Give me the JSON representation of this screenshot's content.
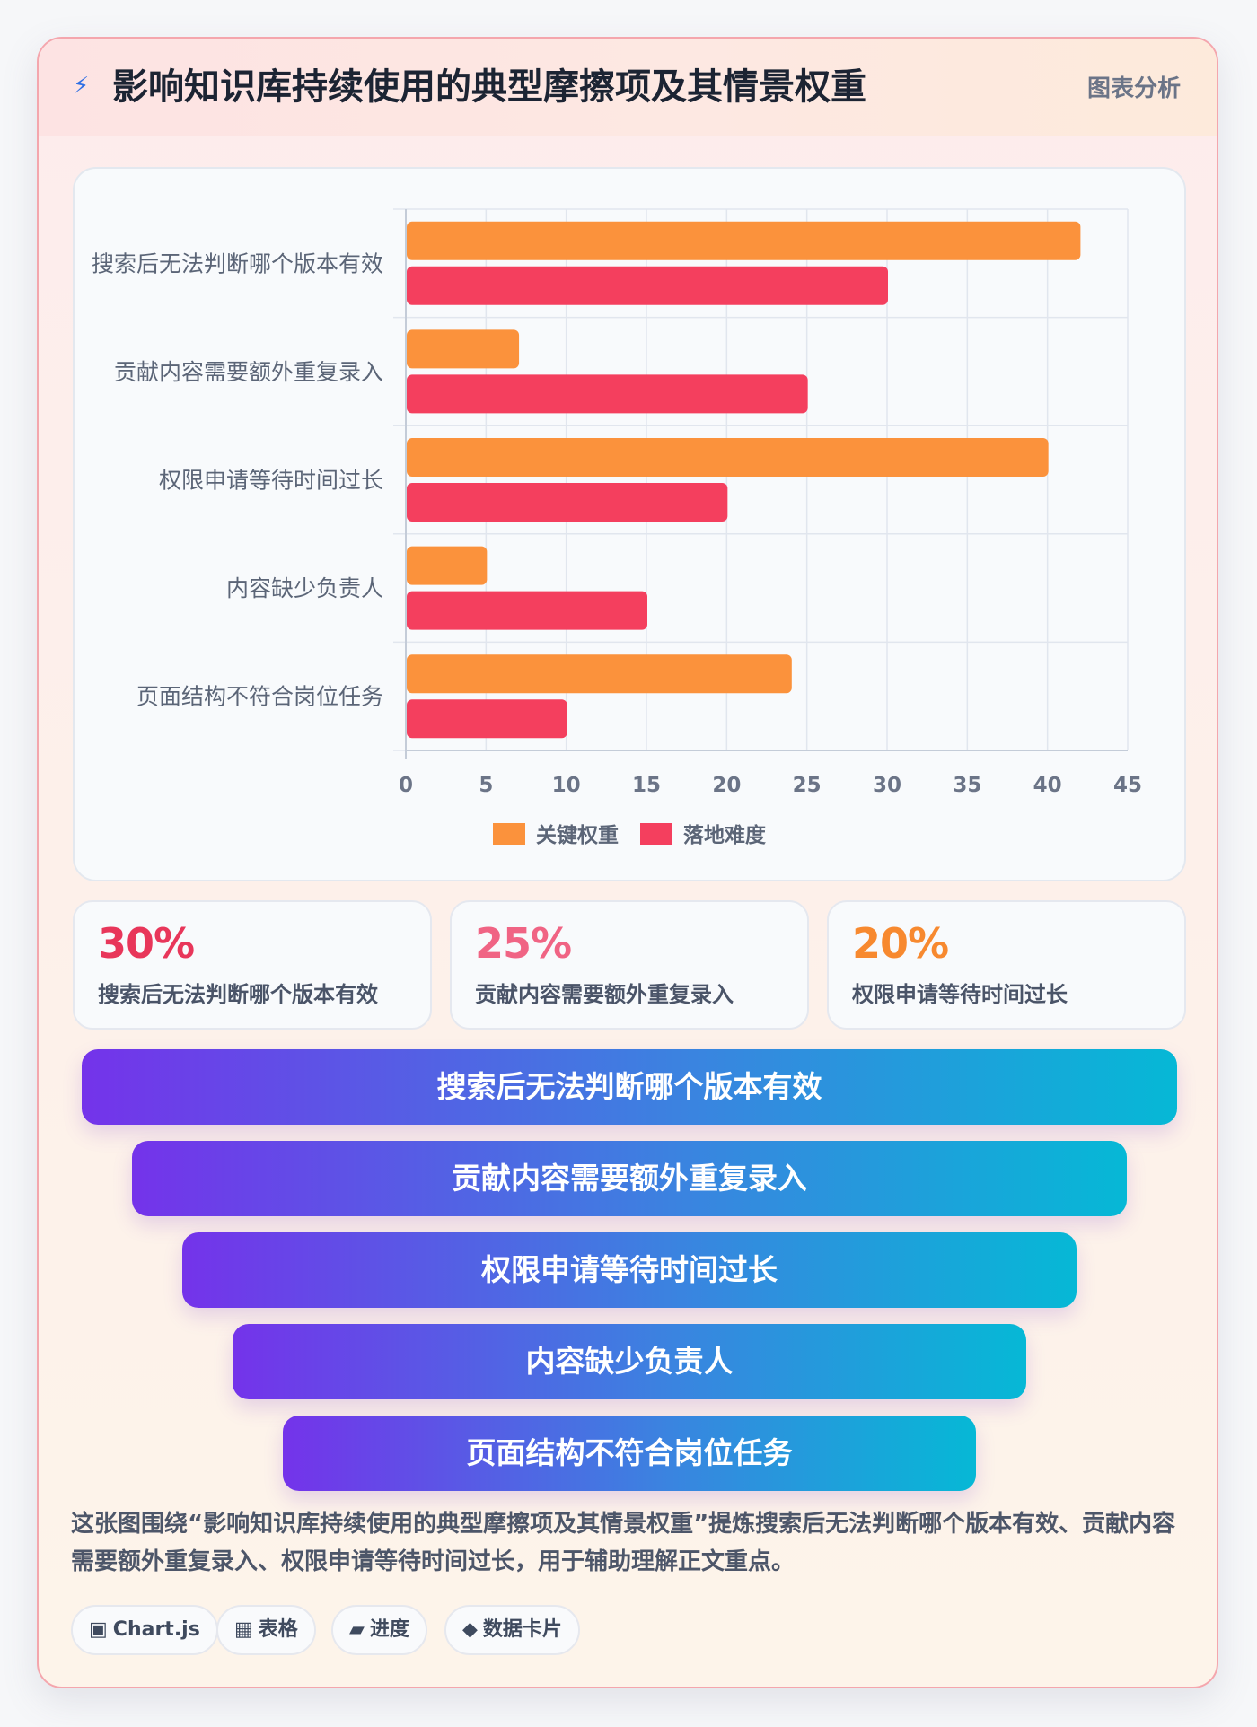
{
  "header": {
    "title": "影响知识库持续使用的典型摩擦项及其情景权重",
    "badge": "图表分析",
    "icon": "lightning-icon"
  },
  "chart_data": {
    "type": "bar",
    "orientation": "horizontal",
    "categories": [
      "搜索后无法判断哪个版本有效",
      "贡献内容需要额外重复录入",
      "权限申请等待时间过长",
      "内容缺少负责人",
      "页面结构不符合岗位任务"
    ],
    "series": [
      {
        "name": "关键权重",
        "values": [
          42,
          7,
          40,
          5,
          24
        ],
        "color": "#fb923c"
      },
      {
        "name": "落地难度",
        "values": [
          30,
          25,
          20,
          15,
          10
        ],
        "color": "#f43f5e"
      }
    ],
    "xlim": [
      0,
      45
    ],
    "xticks": [
      0,
      5,
      10,
      15,
      20,
      25,
      30,
      35,
      40,
      45
    ],
    "grid": true,
    "legend": "bottom"
  },
  "stats": [
    {
      "value": "30%",
      "label": "搜索后无法判断哪个版本有效",
      "color": "#e8365a"
    },
    {
      "value": "25%",
      "label": "贡献内容需要额外重复录入",
      "color": "#f06484"
    },
    {
      "value": "20%",
      "label": "权限申请等待时间过长",
      "color": "#f7892f"
    }
  ],
  "funnel": [
    "搜索后无法判断哪个版本有效",
    "贡献内容需要额外重复录入",
    "权限申请等待时间过长",
    "内容缺少负责人",
    "页面结构不符合岗位任务"
  ],
  "description": "这张图围绕“影响知识库持续使用的典型摩擦项及其情景权重”提炼搜索后无法判断哪个版本有效、贡献内容需要额外重复录入、权限申请等待时间过长，用于辅助理解正文重点。",
  "tags": [
    {
      "icon": "▣",
      "icon_name": "chart-icon",
      "label": "Chart.js"
    },
    {
      "icon": "▦",
      "icon_name": "table-icon",
      "label": "表格"
    },
    {
      "icon": "▰",
      "icon_name": "progress-icon",
      "label": "进度"
    },
    {
      "icon": "◆",
      "icon_name": "diamond-icon",
      "label": "数据卡片"
    }
  ]
}
